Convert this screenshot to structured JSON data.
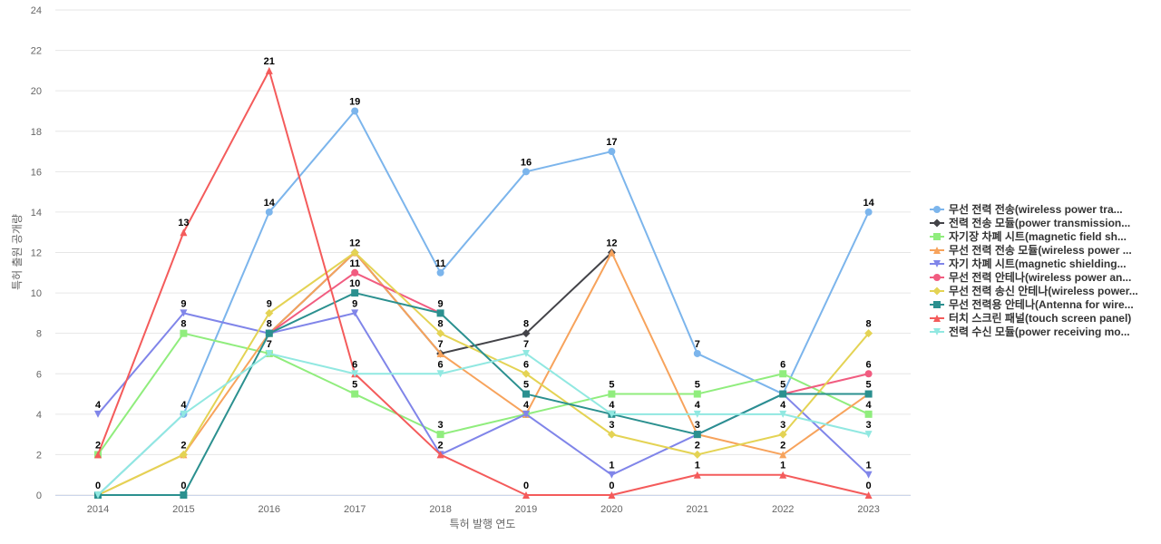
{
  "chart_data": {
    "type": "line",
    "title": "",
    "xlabel": "특허 발행 연도",
    "ylabel": "특허 출원 공개량",
    "x": [
      "2014",
      "2015",
      "2016",
      "2017",
      "2018",
      "2019",
      "2020",
      "2021",
      "2022",
      "2023"
    ],
    "ylim": [
      0,
      24
    ],
    "yticks": [
      0,
      2,
      4,
      6,
      8,
      10,
      12,
      14,
      16,
      18,
      20,
      22,
      24
    ],
    "grid": true,
    "legend_position": "right",
    "series": [
      {
        "name": "무선 전력 전송(wireless power tra...",
        "color": "#7cb5ec",
        "marker": "circle",
        "values": [
          0,
          4,
          14,
          19,
          11,
          16,
          17,
          7,
          5,
          14
        ]
      },
      {
        "name": "전력 전송 모듈(power transmission...",
        "color": "#434348",
        "marker": "diamond",
        "values": [
          null,
          null,
          8,
          12,
          7,
          8,
          12,
          null,
          null,
          null
        ]
      },
      {
        "name": "자기장 차폐 시트(magnetic field sh...",
        "color": "#90ed7d",
        "marker": "square",
        "values": [
          2,
          8,
          7,
          5,
          3,
          4,
          5,
          5,
          6,
          4
        ]
      },
      {
        "name": "무선 전력 전송 모듈(wireless power ...",
        "color": "#f7a35c",
        "marker": "triangle",
        "values": [
          0,
          2,
          8,
          12,
          7,
          4,
          12,
          3,
          2,
          5
        ]
      },
      {
        "name": "자기 차폐 시트(magnetic shielding...",
        "color": "#8085e9",
        "marker": "triangle-down",
        "values": [
          4,
          9,
          8,
          9,
          2,
          4,
          1,
          3,
          5,
          1
        ]
      },
      {
        "name": "무선 전력 안테나(wireless power an...",
        "color": "#f15c80",
        "marker": "circle",
        "values": [
          null,
          null,
          8,
          11,
          9,
          null,
          null,
          null,
          5,
          6
        ]
      },
      {
        "name": "무선 전력 송신 안테나(wireless power...",
        "color": "#e4d354",
        "marker": "diamond",
        "values": [
          0,
          2,
          9,
          12,
          8,
          6,
          3,
          2,
          3,
          8
        ]
      },
      {
        "name": "무선 전력용 안테나(Antenna for wire...",
        "color": "#2b908f",
        "marker": "square",
        "values": [
          0,
          0,
          8,
          10,
          9,
          5,
          4,
          3,
          5,
          5
        ]
      },
      {
        "name": "터치 스크린 패널(touch screen panel)",
        "color": "#f45b5b",
        "marker": "triangle",
        "values": [
          2,
          13,
          21,
          6,
          2,
          0,
          0,
          1,
          1,
          0
        ]
      },
      {
        "name": "전력 수신 모듈(power receiving mo...",
        "color": "#91e8e1",
        "marker": "triangle-down",
        "values": [
          0,
          4,
          7,
          6,
          6,
          7,
          4,
          4,
          4,
          3
        ]
      }
    ],
    "point_labels": [
      {
        "x": "2014",
        "y": 4,
        "text": "4"
      },
      {
        "x": "2014",
        "y": 2,
        "text": "2"
      },
      {
        "x": "2014",
        "y": 0,
        "text": "0"
      },
      {
        "x": "2015",
        "y": 13,
        "text": "13"
      },
      {
        "x": "2015",
        "y": 9,
        "text": "9"
      },
      {
        "x": "2015",
        "y": 8,
        "text": "8"
      },
      {
        "x": "2015",
        "y": 4,
        "text": "4"
      },
      {
        "x": "2015",
        "y": 2,
        "text": "2"
      },
      {
        "x": "2015",
        "y": 0,
        "text": "0"
      },
      {
        "x": "2016",
        "y": 21,
        "text": "21"
      },
      {
        "x": "2016",
        "y": 14,
        "text": "14"
      },
      {
        "x": "2016",
        "y": 9,
        "text": "9"
      },
      {
        "x": "2016",
        "y": 8,
        "text": "8"
      },
      {
        "x": "2016",
        "y": 7,
        "text": "7"
      },
      {
        "x": "2017",
        "y": 19,
        "text": "19"
      },
      {
        "x": "2017",
        "y": 12,
        "text": "12"
      },
      {
        "x": "2017",
        "y": 11,
        "text": "11"
      },
      {
        "x": "2017",
        "y": 10,
        "text": "10"
      },
      {
        "x": "2017",
        "y": 9,
        "text": "9"
      },
      {
        "x": "2017",
        "y": 6,
        "text": "6"
      },
      {
        "x": "2017",
        "y": 5,
        "text": "5"
      },
      {
        "x": "2018",
        "y": 11,
        "text": "11"
      },
      {
        "x": "2018",
        "y": 9,
        "text": "9"
      },
      {
        "x": "2018",
        "y": 8,
        "text": "8"
      },
      {
        "x": "2018",
        "y": 7,
        "text": "7"
      },
      {
        "x": "2018",
        "y": 6,
        "text": "6"
      },
      {
        "x": "2018",
        "y": 3,
        "text": "3"
      },
      {
        "x": "2018",
        "y": 2,
        "text": "2"
      },
      {
        "x": "2019",
        "y": 16,
        "text": "16"
      },
      {
        "x": "2019",
        "y": 8,
        "text": "8"
      },
      {
        "x": "2019",
        "y": 7,
        "text": "7"
      },
      {
        "x": "2019",
        "y": 6,
        "text": "6"
      },
      {
        "x": "2019",
        "y": 5,
        "text": "5"
      },
      {
        "x": "2019",
        "y": 4,
        "text": "4"
      },
      {
        "x": "2019",
        "y": 0,
        "text": "0"
      },
      {
        "x": "2020",
        "y": 17,
        "text": "17"
      },
      {
        "x": "2020",
        "y": 12,
        "text": "12"
      },
      {
        "x": "2020",
        "y": 5,
        "text": "5"
      },
      {
        "x": "2020",
        "y": 4,
        "text": "4"
      },
      {
        "x": "2020",
        "y": 3,
        "text": "3"
      },
      {
        "x": "2020",
        "y": 1,
        "text": "1"
      },
      {
        "x": "2020",
        "y": 0,
        "text": "0"
      },
      {
        "x": "2021",
        "y": 7,
        "text": "7"
      },
      {
        "x": "2021",
        "y": 5,
        "text": "5"
      },
      {
        "x": "2021",
        "y": 4,
        "text": "4"
      },
      {
        "x": "2021",
        "y": 3,
        "text": "3"
      },
      {
        "x": "2021",
        "y": 2,
        "text": "2"
      },
      {
        "x": "2021",
        "y": 1,
        "text": "1"
      },
      {
        "x": "2022",
        "y": 6,
        "text": "6"
      },
      {
        "x": "2022",
        "y": 5,
        "text": "5"
      },
      {
        "x": "2022",
        "y": 4,
        "text": "4"
      },
      {
        "x": "2022",
        "y": 3,
        "text": "3"
      },
      {
        "x": "2022",
        "y": 2,
        "text": "2"
      },
      {
        "x": "2022",
        "y": 1,
        "text": "1"
      },
      {
        "x": "2023",
        "y": 14,
        "text": "14"
      },
      {
        "x": "2023",
        "y": 8,
        "text": "8"
      },
      {
        "x": "2023",
        "y": 6,
        "text": "6"
      },
      {
        "x": "2023",
        "y": 5,
        "text": "5"
      },
      {
        "x": "2023",
        "y": 4,
        "text": "4"
      },
      {
        "x": "2023",
        "y": 3,
        "text": "3"
      },
      {
        "x": "2023",
        "y": 1,
        "text": "1"
      },
      {
        "x": "2023",
        "y": 0,
        "text": "0"
      }
    ]
  }
}
